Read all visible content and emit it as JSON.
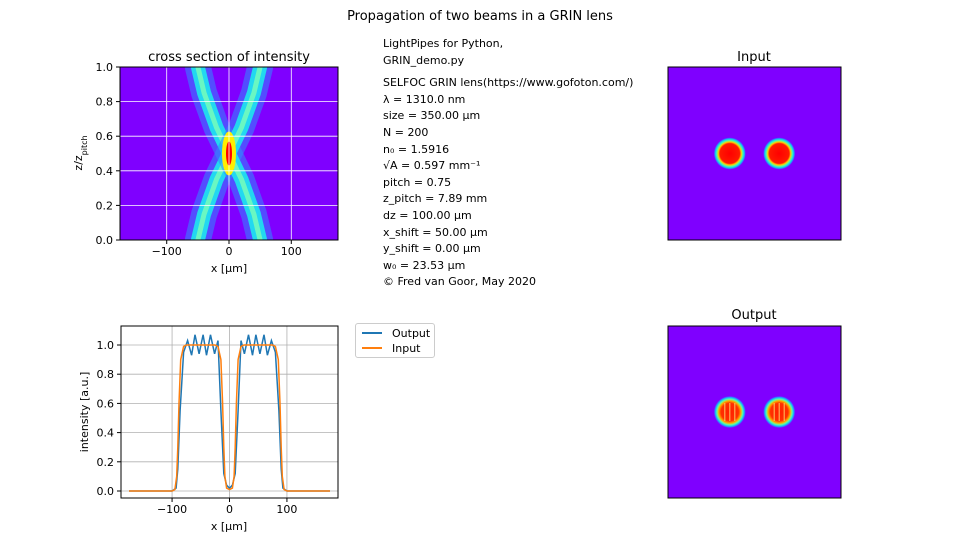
{
  "figure": {
    "title": "Propagation of two beams in a GRIN lens"
  },
  "info_lines": [
    "LightPipes for Python,",
    "GRIN_demo.py",
    "",
    "SELFOC GRIN lens(https://www.gofoton.com/)",
    "λ = 1310.0 nm",
    "size = 350.00 μm",
    "N = 200",
    "n₀ = 1.5916",
    "√A = 0.597 mm⁻¹",
    "pitch = 0.75",
    "z_pitch = 7.89 mm",
    "dz = 100.00 μm",
    "x_shift = 50.00 μm",
    "y_shift = 0.00 μm",
    "w₀ = 23.53 μm",
    "© Fred van Goor, May 2020"
  ],
  "colors": {
    "background_field": "#7f00ff",
    "output": "#1f77b4",
    "input": "#ff7f0e",
    "hot": "#ff0000",
    "ring": "#00d8d8"
  },
  "chart_data": [
    {
      "type": "heatmap",
      "title": "cross section of intensity",
      "xlabel": "x [μm]",
      "ylabel": "z/z_pitch",
      "xlim": [
        -175,
        175
      ],
      "ylim": [
        0,
        1
      ],
      "xticks": [
        "−100",
        "0",
        "100"
      ],
      "yticks": [
        "0.0",
        "0.2",
        "0.4",
        "0.6",
        "0.8",
        "1.0"
      ],
      "grid": true,
      "beam_paths": [
        {
          "name": "left",
          "points": [
            [
              -50,
              0.0
            ],
            [
              -40,
              0.15
            ],
            [
              -20,
              0.35
            ],
            [
              0,
              0.5
            ],
            [
              -20,
              0.65
            ],
            [
              -40,
              0.85
            ],
            [
              -50,
              1.0
            ]
          ]
        },
        {
          "name": "right",
          "points": [
            [
              50,
              0.0
            ],
            [
              40,
              0.15
            ],
            [
              20,
              0.35
            ],
            [
              0,
              0.5
            ],
            [
              20,
              0.65
            ],
            [
              40,
              0.85
            ],
            [
              50,
              1.0
            ]
          ]
        }
      ],
      "focus": {
        "x": 0,
        "z": 0.5
      }
    },
    {
      "type": "heatmap",
      "title": "Input",
      "spots": [
        {
          "x": -50,
          "y": 0,
          "label": "left"
        },
        {
          "x": 50,
          "y": 0,
          "label": "right"
        }
      ]
    },
    {
      "type": "heatmap",
      "title": "Output",
      "spots": [
        {
          "x": -50,
          "y": 0,
          "label": "left"
        },
        {
          "x": 50,
          "y": 0,
          "label": "right"
        }
      ]
    },
    {
      "type": "line",
      "xlabel": "x [μm]",
      "ylabel": "intensity [a.u.]",
      "xlim": [
        -175,
        175
      ],
      "ylim": [
        0,
        1.1
      ],
      "xticks": [
        "−100",
        "0",
        "100"
      ],
      "yticks": [
        "0.0",
        "0.2",
        "0.4",
        "0.6",
        "0.8",
        "1.0"
      ],
      "grid": true,
      "legend": "upper-left-outside",
      "series": [
        {
          "name": "Output",
          "color": "#1f77b4",
          "x": [
            -175,
            -100,
            -93,
            -90,
            -86,
            -80,
            -73,
            -66,
            -60,
            -53,
            -46,
            -40,
            -33,
            -26,
            -20,
            -15,
            -10,
            -5,
            0,
            5,
            10,
            15,
            20,
            26,
            33,
            40,
            46,
            53,
            60,
            66,
            73,
            80,
            86,
            90,
            93,
            100,
            175
          ],
          "y": [
            0,
            0,
            0.02,
            0.15,
            0.55,
            0.95,
            1.03,
            0.93,
            1.07,
            0.94,
            1.07,
            0.93,
            1.07,
            0.94,
            1.03,
            0.55,
            0.12,
            0.04,
            0.02,
            0.04,
            0.12,
            0.55,
            1.03,
            0.94,
            1.07,
            0.93,
            1.07,
            0.94,
            1.07,
            0.93,
            1.03,
            0.95,
            0.55,
            0.15,
            0.02,
            0,
            0
          ]
        },
        {
          "name": "Input",
          "color": "#ff7f0e",
          "x": [
            -175,
            -100,
            -95,
            -92,
            -90,
            -88,
            -85,
            -80,
            -75,
            -25,
            -20,
            -15,
            -12,
            -10,
            -8,
            -5,
            0,
            5,
            8,
            10,
            12,
            15,
            20,
            25,
            75,
            80,
            85,
            88,
            90,
            92,
            95,
            100,
            175
          ],
          "y": [
            0,
            0,
            0.01,
            0.1,
            0.3,
            0.6,
            0.9,
            0.99,
            1.0,
            1.0,
            0.99,
            0.9,
            0.6,
            0.3,
            0.1,
            0.02,
            0.01,
            0.02,
            0.1,
            0.3,
            0.6,
            0.9,
            0.99,
            1.0,
            1.0,
            0.99,
            0.9,
            0.6,
            0.3,
            0.1,
            0.01,
            0,
            0
          ]
        }
      ]
    }
  ]
}
